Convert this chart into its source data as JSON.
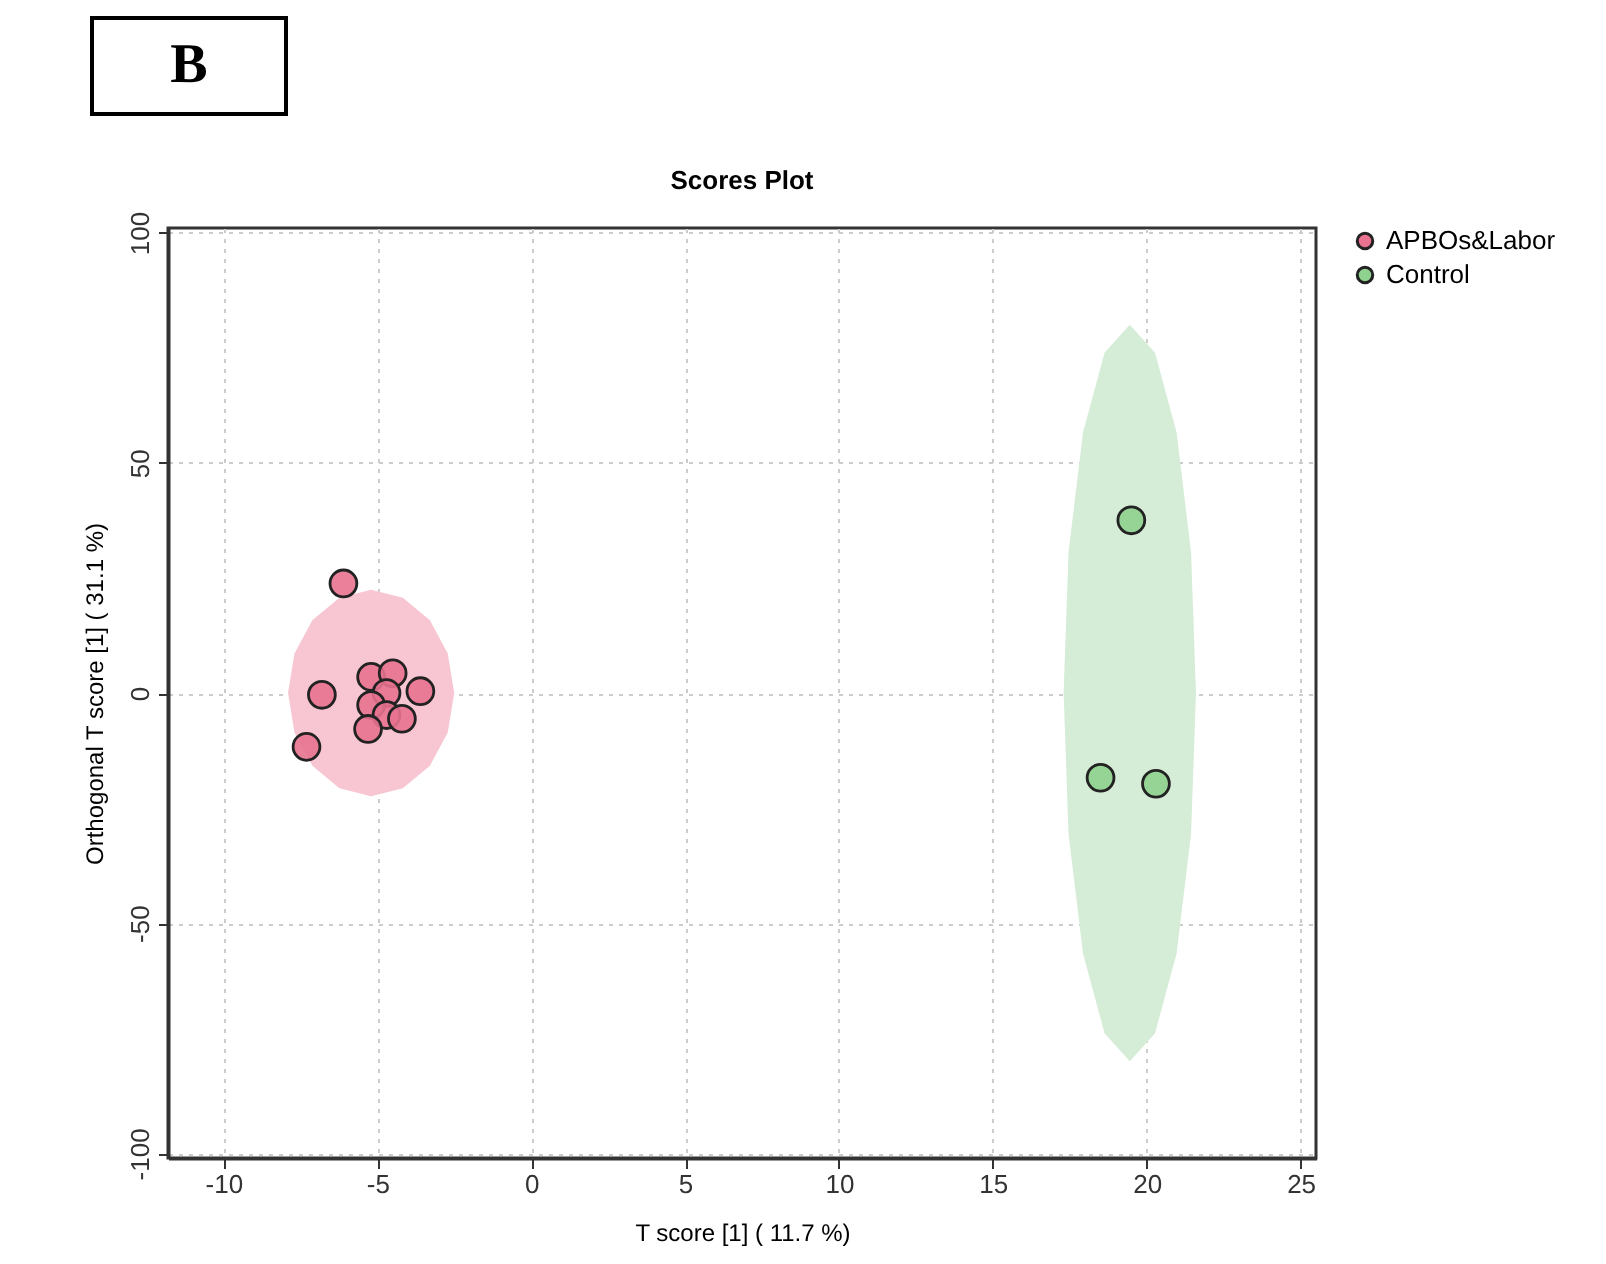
{
  "chart_data": {
    "type": "scatter",
    "title": "Scores Plot",
    "xlabel": "T score [1] ( 11.7 %)",
    "ylabel": "Orthogonal T score [1] ( 31.1 %)",
    "annotations": [
      "B"
    ],
    "xlim": [
      -11.8,
      25.5
    ],
    "xticks": [
      -10,
      -5,
      0,
      5,
      10,
      15,
      20,
      25
    ],
    "ylim": [
      -101,
      101
    ],
    "yticks": [
      -100,
      -50,
      0,
      50,
      100
    ],
    "grid": true,
    "legend": "top right",
    "marker": "circle",
    "series": [
      {
        "type": "area",
        "marker": "none",
        "color": "#f7c6d2",
        "x": [
          -2.5,
          -2.71,
          -3.29,
          -4.17,
          -5.2,
          -6.23,
          -7.11,
          -7.69,
          -7.9,
          -7.69,
          -7.11,
          -6.23,
          -5.2,
          -4.17,
          -3.29,
          -2.71,
          -2.5
        ],
        "values": [
          0,
          8.6,
          15.8,
          20.7,
          22.4,
          20.7,
          15.8,
          8.6,
          0,
          -8.6,
          -15.8,
          -20.7,
          -22.4,
          -20.7,
          -15.8,
          -8.6,
          0
        ]
      },
      {
        "type": "area",
        "marker": "none",
        "color": "#d5ecd6",
        "x": [
          21.6,
          21.44,
          20.97,
          20.27,
          19.45,
          18.63,
          17.93,
          17.46,
          17.3,
          17.46,
          17.93,
          18.63,
          19.45,
          20.27,
          20.97,
          21.44,
          21.6
        ],
        "values": [
          0,
          30.6,
          56.6,
          73.9,
          80,
          73.9,
          56.6,
          30.6,
          0,
          -30.6,
          -56.6,
          -73.9,
          -80,
          -73.9,
          -56.6,
          -30.6,
          0
        ]
      },
      {
        "name": "APBOs&Labor",
        "color": "#e8728f",
        "x": [
          -6.1,
          -6.8,
          -7.3,
          -5.2,
          -4.5,
          -4.7,
          -3.6,
          -5.2,
          -4.7,
          -4.2,
          -5.3
        ],
        "values": [
          23.8,
          -0.4,
          -11.7,
          3.5,
          4.3,
          0,
          0.4,
          -2.6,
          -4.8,
          -5.6,
          -7.8
        ]
      },
      {
        "name": "Control",
        "color": "#8fd18f",
        "x": [
          19.5,
          18.5,
          20.3
        ],
        "values": [
          37.5,
          -18.4,
          -19.7
        ]
      }
    ]
  }
}
